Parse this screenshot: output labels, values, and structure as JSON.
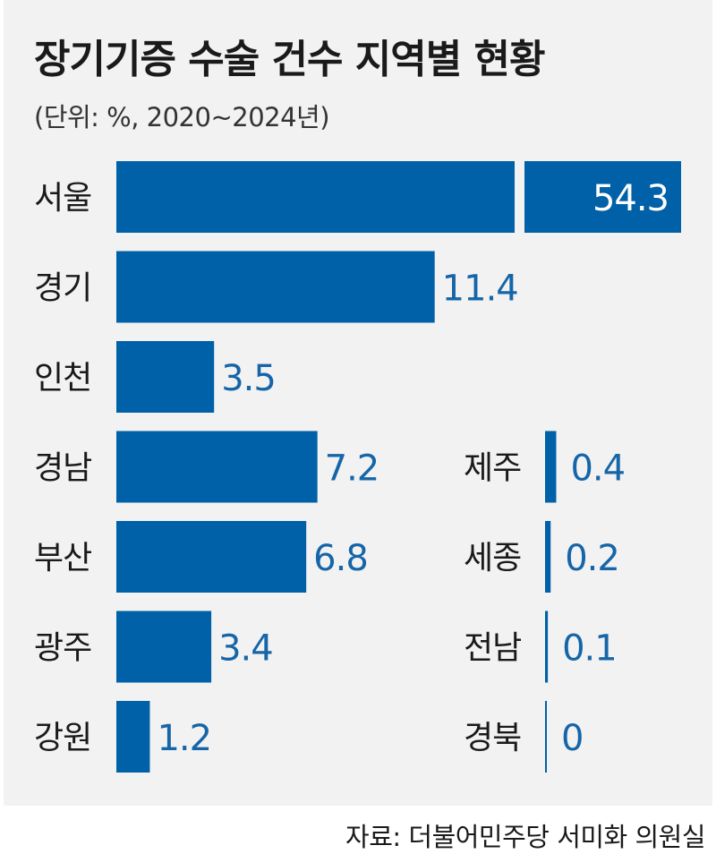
{
  "title": "장기기증 수술 건수 지역별 현황",
  "subtitle": "(단위: %, 2020~2024년)",
  "source": "자료: 더불어민주당 서미화 의원실",
  "colors": {
    "bar": "#0061a8",
    "value_text": "#1565a8",
    "panel": "#f2f2f2"
  },
  "chart_data": {
    "type": "bar",
    "orientation": "horizontal",
    "unit": "%",
    "axis_break": {
      "category": "서울",
      "note": "bar shown broken (truncated)"
    },
    "left_column": [
      {
        "category": "서울",
        "value": 54.3,
        "label": "54.3"
      },
      {
        "category": "경기",
        "value": 11.4,
        "label": "11.4"
      },
      {
        "category": "인천",
        "value": 3.5,
        "label": "3.5"
      },
      {
        "category": "경남",
        "value": 7.2,
        "label": "7.2"
      },
      {
        "category": "부산",
        "value": 6.8,
        "label": "6.8"
      },
      {
        "category": "광주",
        "value": 3.4,
        "label": "3.4"
      },
      {
        "category": "강원",
        "value": 1.2,
        "label": "1.2"
      }
    ],
    "right_column": [
      {
        "category": "제주",
        "value": 0.4,
        "label": "0.4"
      },
      {
        "category": "세종",
        "value": 0.2,
        "label": "0.2"
      },
      {
        "category": "전남",
        "value": 0.1,
        "label": "0.1"
      },
      {
        "category": "경북",
        "value": 0,
        "label": "0"
      }
    ]
  }
}
